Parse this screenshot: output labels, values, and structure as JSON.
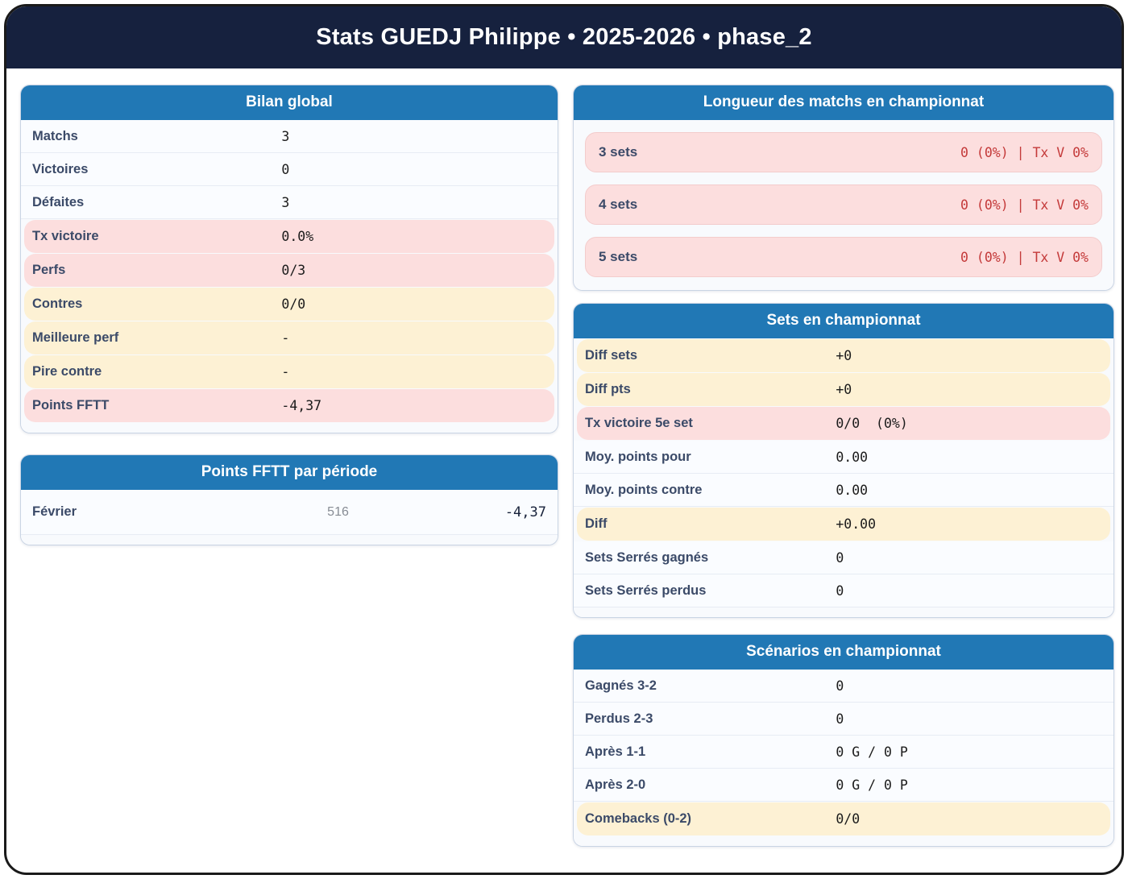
{
  "header": {
    "title": "Stats GUEDJ Philippe • 2025-2026 • phase_2"
  },
  "colors": {
    "header_navy": "#16213e",
    "card_header_blue": "#2178b5",
    "pink_row_bg": "#fcdede",
    "cream_row_bg": "#fdf1d4",
    "red_value": "#c43a3a",
    "label_navy": "#3b4a68"
  },
  "cards": {
    "bilan_global": {
      "title": "Bilan global",
      "rows": [
        {
          "label": "Matchs",
          "value": "3",
          "tone": "plain"
        },
        {
          "label": "Victoires",
          "value": "0",
          "tone": "plain"
        },
        {
          "label": "Défaites",
          "value": "3",
          "tone": "plain"
        },
        {
          "label": "Tx victoire",
          "value": "0.0%",
          "tone": "pink"
        },
        {
          "label": "Perfs",
          "value": "0/3",
          "tone": "pink"
        },
        {
          "label": "Contres",
          "value": "0/0",
          "tone": "cream"
        },
        {
          "label": "Meilleure perf",
          "value": "-",
          "tone": "cream"
        },
        {
          "label": "Pire contre",
          "value": "-",
          "tone": "cream"
        },
        {
          "label": "Points FFTT",
          "value": "-4,37",
          "tone": "pink"
        }
      ]
    },
    "points_periode": {
      "title": "Points FFTT par période",
      "rows": [
        {
          "label": "Février",
          "mid": "516",
          "value": "-4,37"
        }
      ]
    },
    "longueur_matchs": {
      "title": "Longueur des matchs en championnat",
      "rows": [
        {
          "label": "3 sets",
          "value": "0 (0%) | Tx V 0%"
        },
        {
          "label": "4 sets",
          "value": "0 (0%) | Tx V 0%"
        },
        {
          "label": "5 sets",
          "value": "0 (0%) | Tx V 0%"
        }
      ]
    },
    "sets_championnat": {
      "title": "Sets en championnat",
      "rows": [
        {
          "label": "Diff sets",
          "value": "+0",
          "tone": "cream"
        },
        {
          "label": "Diff pts",
          "value": "+0",
          "tone": "cream"
        },
        {
          "label": "Tx victoire 5e set",
          "value": "0/0  (0%)",
          "tone": "pink"
        },
        {
          "label": "Moy. points pour",
          "value": "0.00",
          "tone": "plain"
        },
        {
          "label": "Moy. points contre",
          "value": "0.00",
          "tone": "plain"
        },
        {
          "label": "Diff",
          "value": "+0.00",
          "tone": "cream"
        },
        {
          "label": "Sets Serrés gagnés",
          "value": "0",
          "tone": "plain"
        },
        {
          "label": "Sets Serrés perdus",
          "value": "0",
          "tone": "plain"
        }
      ]
    },
    "scenarios": {
      "title": "Scénarios en championnat",
      "rows": [
        {
          "label": "Gagnés 3-2",
          "value": "0",
          "tone": "plain"
        },
        {
          "label": "Perdus 2-3",
          "value": "0",
          "tone": "plain"
        },
        {
          "label": "Après 1-1",
          "value": "0 G / 0 P",
          "tone": "plain"
        },
        {
          "label": "Après 2-0",
          "value": "0 G / 0 P",
          "tone": "plain"
        },
        {
          "label": "Comebacks (0-2)",
          "value": "0/0",
          "tone": "cream"
        }
      ]
    }
  }
}
